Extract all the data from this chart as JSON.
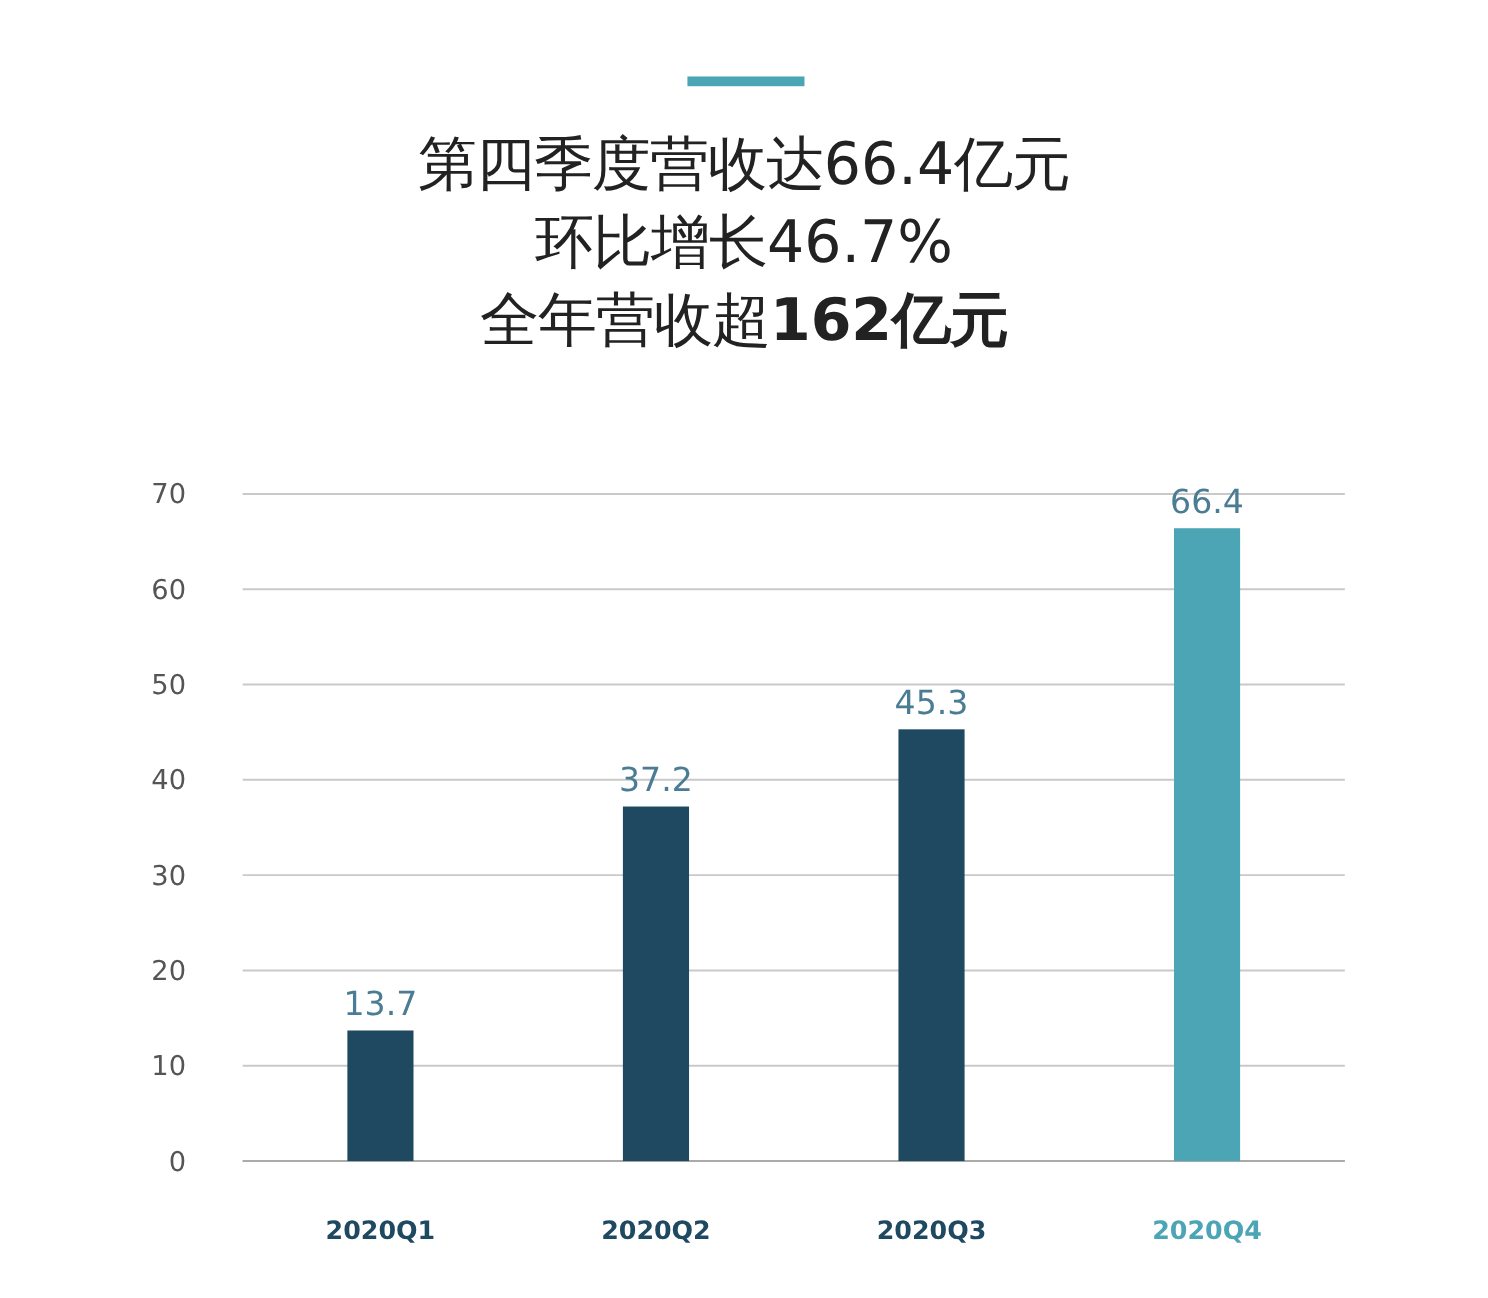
{
  "chart_data": {
    "type": "bar",
    "title": "第四季度营收达66.4亿元",
    "subtitle": "环比增长46.7%",
    "annotations": [
      "全年营收超162亿元"
    ],
    "categories": [
      "2020Q1",
      "2020Q2",
      "2020Q3",
      "2020Q4"
    ],
    "values": [
      13.7,
      37.2,
      45.3,
      66.4
    ],
    "colors": [
      "#1f4961",
      "#1f4961",
      "#1f4961",
      "#4ba5b5"
    ],
    "ylim": [
      0,
      70
    ],
    "yticks": [
      0,
      10,
      20,
      30,
      40,
      50,
      60,
      70
    ],
    "grid": "y",
    "data_labels": true
  }
}
